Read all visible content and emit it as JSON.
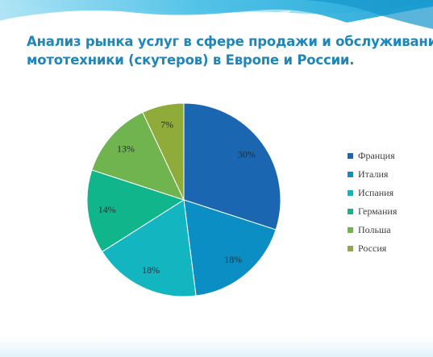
{
  "title": {
    "line1": "Анализ рынка услуг в сфере  продажи и обслуживания",
    "line2": "мототехники (скутеров) в Европе и России."
  },
  "chart_data": {
    "type": "pie",
    "categories": [
      "Франция",
      "Италия",
      "Испания",
      "Германия",
      "Польша",
      "Россия"
    ],
    "values": [
      30,
      18,
      18,
      14,
      13,
      7
    ],
    "labels": [
      "30%",
      "18%",
      "18%",
      "14%",
      "13%",
      "7%"
    ],
    "colors": [
      "#1a66b0",
      "#0b8ec4",
      "#13b5c0",
      "#10b58c",
      "#6fb44f",
      "#8fab3a"
    ],
    "start_angle_deg": 0,
    "direction": "clockwise",
    "legend_position": "right"
  }
}
